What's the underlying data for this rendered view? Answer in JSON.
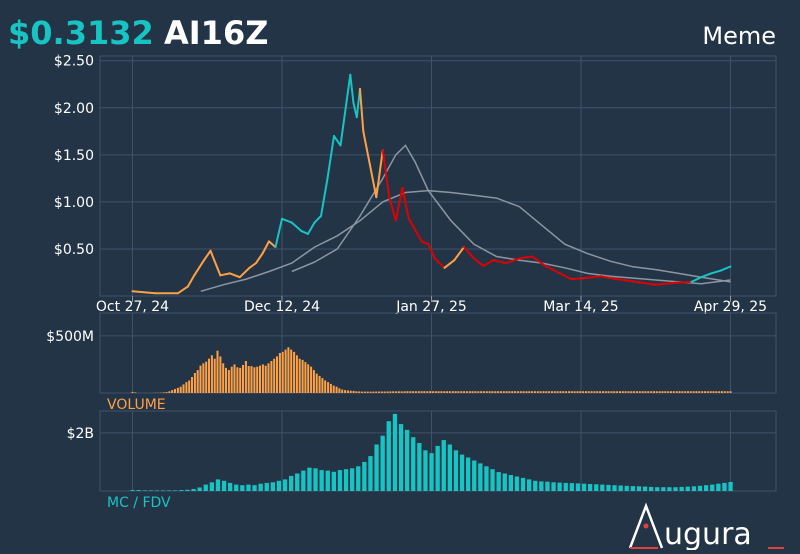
{
  "header": {
    "price": "$0.3132",
    "ticker": "AI16Z",
    "category": "Meme"
  },
  "colors": {
    "background": "#243447",
    "accent": "#17c4c4",
    "price_up": "#17c4c4",
    "price_down_orange": "#ffa143",
    "price_down_red": "#e00000",
    "moving_average": "#8c96a3",
    "volume_bar": "#ffa143",
    "mcap_bar": "#17c4c4",
    "grid": "#3e526a"
  },
  "chart_data": [
    {
      "type": "line",
      "name": "price",
      "x_ticks": [
        "Oct 27, 24",
        "Dec 12, 24",
        "Jan 27, 25",
        "Mar 14, 25",
        "Apr 29, 25"
      ],
      "y_ticks": [
        "$0.50",
        "$1.00",
        "$1.50",
        "$2.00",
        "$2.50"
      ],
      "ylim": [
        0,
        2.55
      ],
      "x": [
        "2024-10-27",
        "2024-11-03",
        "2024-11-10",
        "2024-11-13",
        "2024-11-15",
        "2024-11-18",
        "2024-11-20",
        "2024-11-23",
        "2024-11-26",
        "2024-11-29",
        "2024-12-02",
        "2024-12-04",
        "2024-12-06",
        "2024-12-08",
        "2024-12-10",
        "2024-12-12",
        "2024-12-15",
        "2024-12-18",
        "2024-12-20",
        "2024-12-22",
        "2024-12-24",
        "2024-12-26",
        "2024-12-28",
        "2024-12-30",
        "2025-01-01",
        "2025-01-02",
        "2025-01-03",
        "2025-01-04",
        "2025-01-05",
        "2025-01-06",
        "2025-01-08",
        "2025-01-10",
        "2025-01-12",
        "2025-01-14",
        "2025-01-16",
        "2025-01-18",
        "2025-01-20",
        "2025-01-22",
        "2025-01-24",
        "2025-01-26",
        "2025-01-28",
        "2025-01-31",
        "2025-02-03",
        "2025-02-06",
        "2025-02-09",
        "2025-02-12",
        "2025-02-15",
        "2025-02-19",
        "2025-02-23",
        "2025-02-27",
        "2025-03-03",
        "2025-03-07",
        "2025-03-11",
        "2025-03-15",
        "2025-03-20",
        "2025-03-25",
        "2025-03-31",
        "2025-04-06",
        "2025-04-12",
        "2025-04-17",
        "2025-04-20",
        "2025-04-23",
        "2025-04-26",
        "2025-04-29"
      ],
      "y": [
        0.05,
        0.03,
        0.03,
        0.1,
        0.22,
        0.38,
        0.48,
        0.22,
        0.24,
        0.2,
        0.3,
        0.35,
        0.45,
        0.58,
        0.52,
        0.82,
        0.78,
        0.69,
        0.66,
        0.78,
        0.85,
        1.25,
        1.7,
        1.6,
        2.1,
        2.35,
        2.05,
        1.9,
        2.2,
        1.75,
        1.4,
        1.05,
        1.55,
        1.05,
        0.8,
        1.15,
        0.82,
        0.7,
        0.58,
        0.55,
        0.4,
        0.3,
        0.38,
        0.52,
        0.4,
        0.32,
        0.38,
        0.35,
        0.4,
        0.42,
        0.32,
        0.25,
        0.18,
        0.19,
        0.21,
        0.18,
        0.15,
        0.12,
        0.14,
        0.15,
        0.2,
        0.24,
        0.27,
        0.3132
      ],
      "segment_colors": [
        "orange",
        "orange",
        "orange",
        "orange",
        "orange",
        "orange",
        "orange",
        "orange",
        "orange",
        "orange",
        "orange",
        "orange",
        "orange",
        "orange",
        "orange",
        "cyan",
        "cyan",
        "cyan",
        "cyan",
        "cyan",
        "cyan",
        "cyan",
        "cyan",
        "cyan",
        "cyan",
        "cyan",
        "cyan",
        "cyan",
        "cyan",
        "orange",
        "orange",
        "orange",
        "orange",
        "red",
        "red",
        "red",
        "red",
        "red",
        "red",
        "red",
        "red",
        "red",
        "orange",
        "orange",
        "red",
        "red",
        "red",
        "red",
        "red",
        "red",
        "red",
        "red",
        "red",
        "red",
        "red",
        "red",
        "red",
        "red",
        "red",
        "red",
        "cyan",
        "cyan",
        "cyan",
        "cyan"
      ],
      "moving_average_long": {
        "x": [
          "2024-11-17",
          "2024-11-24",
          "2024-12-01",
          "2024-12-08",
          "2024-12-15",
          "2024-12-22",
          "2024-12-29",
          "2025-01-05",
          "2025-01-12",
          "2025-01-19",
          "2025-01-26",
          "2025-02-02",
          "2025-02-09",
          "2025-02-16",
          "2025-02-23",
          "2025-03-02",
          "2025-03-09",
          "2025-03-16",
          "2025-03-23",
          "2025-03-30",
          "2025-04-06",
          "2025-04-13",
          "2025-04-20",
          "2025-04-29"
        ],
        "y": [
          0.05,
          0.12,
          0.18,
          0.26,
          0.35,
          0.52,
          0.64,
          0.8,
          1.0,
          1.1,
          1.12,
          1.1,
          1.07,
          1.04,
          0.95,
          0.75,
          0.55,
          0.45,
          0.37,
          0.31,
          0.28,
          0.24,
          0.2,
          0.15
        ]
      },
      "moving_average_short": {
        "x": [
          "2024-12-15",
          "2024-12-22",
          "2024-12-29",
          "2025-01-05",
          "2025-01-12",
          "2025-01-16",
          "2025-01-19",
          "2025-01-22",
          "2025-01-26",
          "2025-02-02",
          "2025-02-09",
          "2025-02-16",
          "2025-02-23",
          "2025-03-02",
          "2025-03-09",
          "2025-03-16",
          "2025-03-23",
          "2025-03-30",
          "2025-04-06",
          "2025-04-13",
          "2025-04-20",
          "2025-04-29"
        ],
        "y": [
          0.26,
          0.36,
          0.5,
          0.85,
          1.25,
          1.5,
          1.6,
          1.42,
          1.12,
          0.8,
          0.55,
          0.42,
          0.38,
          0.35,
          0.3,
          0.24,
          0.21,
          0.19,
          0.17,
          0.15,
          0.13,
          0.17
        ]
      }
    },
    {
      "type": "bar",
      "name": "volume",
      "label": "VOLUME",
      "y_ticks": [
        "$500M"
      ],
      "ylim": [
        0,
        700
      ],
      "values": [
        10,
        5,
        0,
        0,
        0,
        0,
        0,
        0,
        2,
        2,
        3,
        5,
        8,
        15,
        25,
        35,
        45,
        55,
        75,
        95,
        110,
        140,
        175,
        200,
        240,
        260,
        275,
        300,
        330,
        300,
        370,
        320,
        260,
        220,
        200,
        230,
        250,
        225,
        220,
        245,
        280,
        235,
        235,
        225,
        230,
        240,
        250,
        240,
        260,
        280,
        300,
        320,
        350,
        360,
        380,
        400,
        380,
        360,
        330,
        300,
        290,
        270,
        250,
        230,
        200,
        170,
        150,
        130,
        110,
        95,
        80,
        65,
        55,
        40,
        30,
        25,
        22,
        20,
        18,
        15,
        14,
        12,
        12,
        12,
        12,
        12,
        13,
        13,
        13,
        13,
        14,
        14,
        15,
        15,
        15,
        15,
        15,
        16,
        16,
        16,
        16,
        16,
        16,
        16,
        16,
        16,
        16,
        16,
        16,
        16,
        16,
        16,
        16,
        16,
        16,
        16,
        16,
        16,
        16,
        16,
        16,
        16,
        16,
        16,
        16,
        16,
        16,
        16,
        16,
        16,
        16,
        16,
        16,
        16,
        16,
        16,
        16,
        16,
        16,
        16,
        16,
        16,
        16,
        16,
        16,
        16,
        16,
        16,
        16,
        16,
        16,
        16,
        16,
        16,
        16,
        16,
        16,
        16,
        16,
        16,
        16,
        16,
        16,
        16,
        16,
        16,
        16,
        16,
        16,
        16,
        16,
        16,
        16,
        16,
        16,
        16,
        16,
        16,
        16,
        16,
        16,
        16,
        16,
        16,
        16,
        16,
        16,
        16,
        16,
        16,
        16,
        16,
        16,
        16,
        16,
        16,
        16,
        16,
        16,
        16,
        16,
        16,
        16,
        16,
        16,
        16,
        16,
        16,
        16,
        16,
        16,
        16
      ]
    },
    {
      "type": "bar",
      "name": "mc_fdv",
      "label": "MC / FDV",
      "y_ticks": [
        "$2B"
      ],
      "ylim": [
        0,
        2.75
      ],
      "values": [
        0.03,
        0.03,
        0.02,
        0.02,
        0.02,
        0.02,
        0.02,
        0.02,
        0.03,
        0.04,
        0.07,
        0.12,
        0.22,
        0.3,
        0.4,
        0.35,
        0.28,
        0.22,
        0.2,
        0.22,
        0.2,
        0.25,
        0.28,
        0.3,
        0.35,
        0.4,
        0.52,
        0.6,
        0.7,
        0.8,
        0.78,
        0.72,
        0.7,
        0.66,
        0.72,
        0.75,
        0.78,
        0.85,
        1.0,
        1.2,
        1.6,
        1.9,
        2.4,
        2.65,
        2.3,
        2.1,
        1.85,
        1.65,
        1.4,
        1.3,
        1.55,
        1.75,
        1.6,
        1.4,
        1.25,
        1.15,
        1.05,
        0.95,
        0.85,
        0.75,
        0.65,
        0.6,
        0.55,
        0.5,
        0.45,
        0.4,
        0.35,
        0.33,
        0.32,
        0.3,
        0.29,
        0.28,
        0.27,
        0.26,
        0.25,
        0.24,
        0.23,
        0.22,
        0.21,
        0.2,
        0.19,
        0.18,
        0.17,
        0.16,
        0.15,
        0.14,
        0.13,
        0.13,
        0.13,
        0.13,
        0.14,
        0.15,
        0.16,
        0.18,
        0.2,
        0.22,
        0.25,
        0.28,
        0.31
      ]
    }
  ],
  "footer": {
    "logo_text": "ugura"
  }
}
